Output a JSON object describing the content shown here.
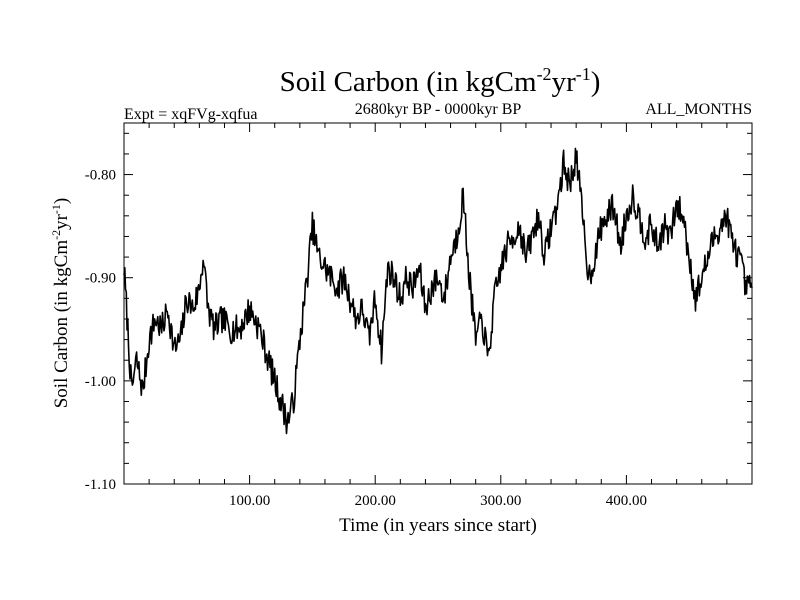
{
  "chart_data": {
    "type": "line",
    "title": {
      "main": "Soil Carbon (in kgCm",
      "exp1": "-2",
      "mid": "yr",
      "exp2": "-1",
      "close": ")"
    },
    "subtitle_left": "Expt = xqFVg-xqfua",
    "subtitle_center": "2680kyr BP - 0000kyr BP",
    "subtitle_right": "ALL_MONTHS",
    "xlabel": "Time (in years since start)",
    "ylabel": {
      "main": "Soil Carbon (in kgCm",
      "exp1": "-2",
      "mid": "yr",
      "exp2": "-1",
      "close": ")"
    },
    "xlim": [
      0,
      500
    ],
    "ylim": [
      -1.1,
      -0.75
    ],
    "xticks": [
      100,
      200,
      300,
      400
    ],
    "xtick_labels": [
      "100.00",
      "200.00",
      "300.00",
      "400.00"
    ],
    "yticks": [
      -1.1,
      -1.0,
      -0.9,
      -0.8
    ],
    "ytick_labels": [
      "-1.10",
      "-1.00",
      "-0.90",
      "-0.80"
    ],
    "line_color": "#000000",
    "series": [
      {
        "name": "Soil Carbon",
        "x": [
          0,
          3,
          6,
          10,
          15,
          20,
          25,
          30,
          35,
          40,
          45,
          50,
          55,
          60,
          63,
          67,
          72,
          78,
          85,
          92,
          100,
          108,
          115,
          120,
          125,
          130,
          135,
          140,
          145,
          150,
          155,
          160,
          165,
          170,
          175,
          180,
          185,
          190,
          195,
          200,
          205,
          210,
          215,
          220,
          225,
          230,
          235,
          240,
          245,
          250,
          255,
          260,
          265,
          270,
          275,
          280,
          285,
          290,
          295,
          300,
          305,
          310,
          315,
          320,
          325,
          330,
          335,
          340,
          345,
          350,
          355,
          360,
          365,
          370,
          375,
          380,
          385,
          390,
          395,
          400,
          405,
          410,
          415,
          420,
          425,
          430,
          435,
          440,
          445,
          450,
          455,
          460,
          465,
          470,
          475,
          480,
          485,
          490,
          495,
          500
        ],
        "y": [
          -0.89,
          -0.95,
          -1.01,
          -0.98,
          -1.01,
          -0.96,
          -0.94,
          -0.95,
          -0.93,
          -0.97,
          -0.96,
          -0.92,
          -0.93,
          -0.91,
          -0.88,
          -0.93,
          -0.95,
          -0.94,
          -0.95,
          -0.95,
          -0.93,
          -0.95,
          -0.98,
          -1.0,
          -1.02,
          -1.04,
          -1.02,
          -0.96,
          -0.91,
          -0.85,
          -0.88,
          -0.89,
          -0.9,
          -0.91,
          -0.9,
          -0.92,
          -0.94,
          -0.93,
          -0.96,
          -0.92,
          -0.97,
          -0.89,
          -0.9,
          -0.92,
          -0.9,
          -0.91,
          -0.89,
          -0.93,
          -0.91,
          -0.9,
          -0.92,
          -0.88,
          -0.86,
          -0.82,
          -0.9,
          -0.96,
          -0.94,
          -0.98,
          -0.92,
          -0.89,
          -0.87,
          -0.86,
          -0.85,
          -0.88,
          -0.86,
          -0.84,
          -0.88,
          -0.85,
          -0.83,
          -0.79,
          -0.81,
          -0.78,
          -0.84,
          -0.9,
          -0.88,
          -0.85,
          -0.84,
          -0.83,
          -0.87,
          -0.84,
          -0.82,
          -0.84,
          -0.86,
          -0.85,
          -0.87,
          -0.85,
          -0.86,
          -0.83,
          -0.84,
          -0.88,
          -0.92,
          -0.9,
          -0.88,
          -0.86,
          -0.85,
          -0.84,
          -0.87,
          -0.88,
          -0.91,
          -0.91
        ]
      }
    ]
  }
}
